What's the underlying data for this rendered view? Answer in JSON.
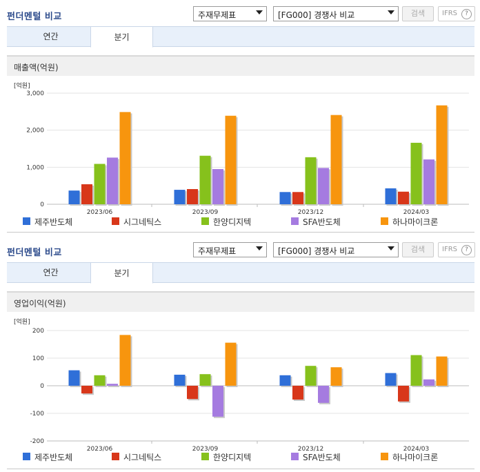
{
  "panels": [
    {
      "title": "펀더멘털 비교",
      "select1": "주재무제표",
      "select2": "[FG000] 경쟁사 비교",
      "search_label": "검색",
      "ifrs_label": "IFRS",
      "ifrs_help": "?",
      "tabs": [
        {
          "label": "연간"
        },
        {
          "label": "분기"
        }
      ],
      "active_tab": "분기",
      "subtitle": "매출액(억원)",
      "unit": "[억원]"
    },
    {
      "title": "펀더멘털 비교",
      "select1": "주재무제표",
      "select2": "[FG000] 경쟁사 비교",
      "search_label": "검색",
      "ifrs_label": "IFRS",
      "ifrs_help": "?",
      "tabs": [
        {
          "label": "연간"
        },
        {
          "label": "분기"
        }
      ],
      "active_tab": "분기",
      "subtitle": "영업이익(억원)",
      "unit": "[억원]"
    }
  ],
  "colors": {
    "제주반도체": "#2f6fd8",
    "시그네틱스": "#d8371a",
    "한양디지텍": "#86c11c",
    "SFA반도체": "#a57be0",
    "하나마이크론": "#f7950e"
  },
  "chart_data": [
    {
      "type": "bar",
      "title": "매출액(억원)",
      "ylabel": "[억원]",
      "categories": [
        "2023/06",
        "2023/09",
        "2023/12",
        "2024/03"
      ],
      "ylim": [
        0,
        3000
      ],
      "yticks": [
        0,
        1000,
        2000,
        3000
      ],
      "ytick_labels": [
        "0",
        "1,000",
        "2,000",
        "3,000"
      ],
      "grid": true,
      "legend": "bottom",
      "series": [
        {
          "name": "제주반도체",
          "values": [
            370,
            390,
            330,
            430
          ]
        },
        {
          "name": "시그네틱스",
          "values": [
            540,
            410,
            330,
            340
          ]
        },
        {
          "name": "한양디지텍",
          "values": [
            1090,
            1310,
            1270,
            1660
          ]
        },
        {
          "name": "SFA반도체",
          "values": [
            1260,
            950,
            980,
            1210
          ]
        },
        {
          "name": "하나마이크론",
          "values": [
            2490,
            2390,
            2410,
            2670
          ]
        }
      ]
    },
    {
      "type": "bar",
      "title": "영업이익(억원)",
      "ylabel": "[억원]",
      "categories": [
        "2023/06",
        "2023/09",
        "2023/12",
        "2024/03"
      ],
      "ylim": [
        -200,
        200
      ],
      "yticks": [
        -200,
        -100,
        0,
        100,
        200
      ],
      "ytick_labels": [
        "-200",
        "-100",
        "0",
        "100",
        "200"
      ],
      "grid": true,
      "legend": "bottom",
      "series": [
        {
          "name": "제주반도체",
          "values": [
            56,
            40,
            38,
            46
          ]
        },
        {
          "name": "시그네틱스",
          "values": [
            -28,
            -48,
            -50,
            -57
          ]
        },
        {
          "name": "한양디지텍",
          "values": [
            38,
            42,
            72,
            111
          ]
        },
        {
          "name": "SFA반도체",
          "values": [
            7,
            -112,
            -62,
            23
          ]
        },
        {
          "name": "하나마이크론",
          "values": [
            184,
            156,
            67,
            106
          ]
        }
      ]
    }
  ]
}
